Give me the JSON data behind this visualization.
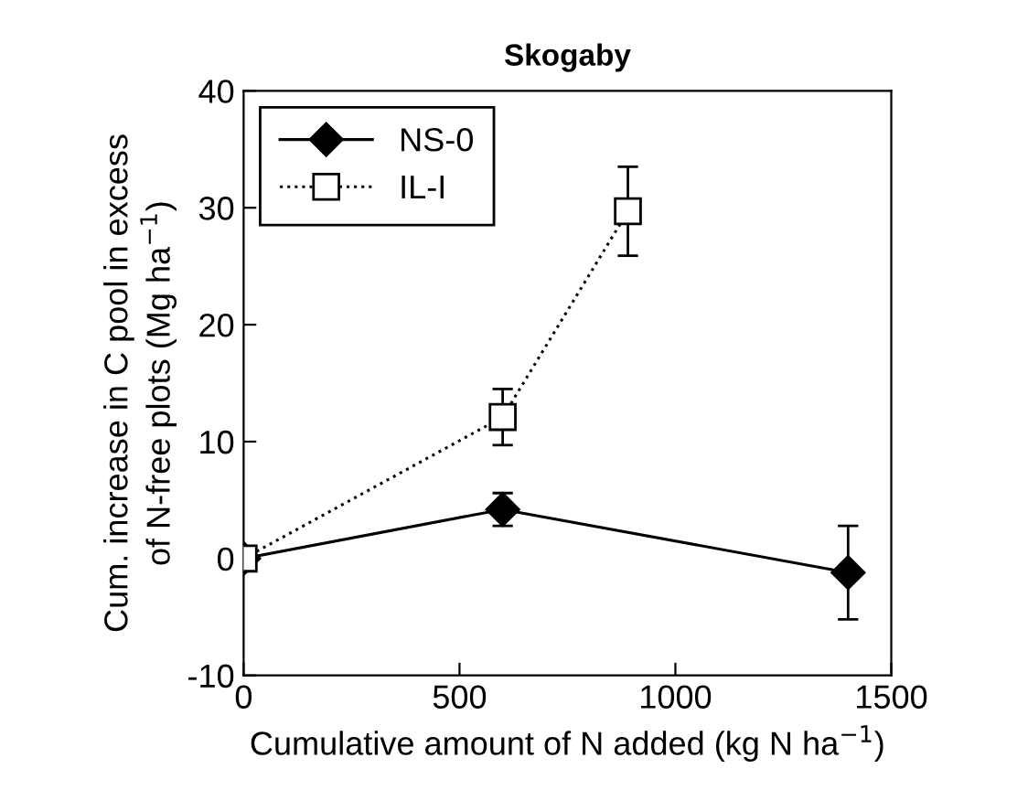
{
  "chart_data": {
    "type": "line",
    "title": "Skogaby",
    "xlabel": "Cumulative amount of N added (kg N ha$^{−1}$)",
    "ylabel": "Cum. increase in C pool in excess\nof N-free plots (Mg ha$^{−1}$)",
    "series": [
      {
        "name": "NS-0",
        "color": "#000000",
        "marker": "diamond",
        "line_style": "solid",
        "x": [
          0,
          600,
          1400
        ],
        "values": [
          0,
          4.2,
          -1.2
        ],
        "errors": [
          null,
          1.4,
          4.0
        ]
      },
      {
        "name": "IL-I",
        "color": "#000000",
        "marker": "square",
        "line_style": "dotted",
        "x": [
          0,
          600,
          890
        ],
        "values": [
          0,
          12.1,
          29.7
        ],
        "errors": [
          null,
          2.4,
          3.8
        ]
      }
    ],
    "xlim": [
      0,
      1500
    ],
    "xticks": [
      0,
      500,
      1000,
      1500
    ],
    "ylim": [
      -10,
      40
    ],
    "yticks": [
      -10,
      0,
      10,
      20,
      30,
      40
    ],
    "grid": false,
    "legend": "top left"
  }
}
